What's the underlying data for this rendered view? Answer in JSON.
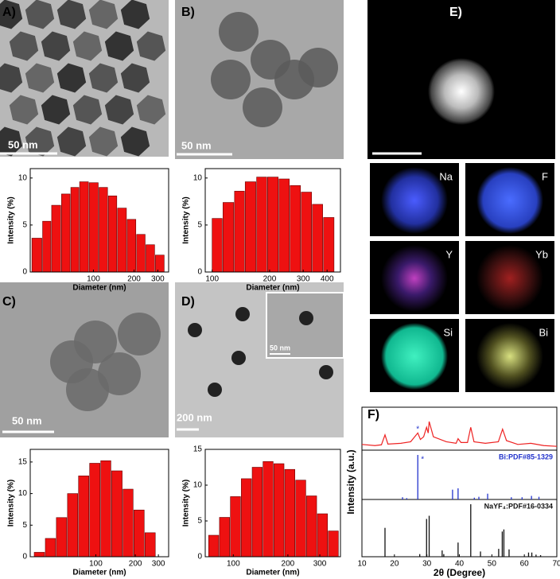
{
  "panels": {
    "A": {
      "label": "A)",
      "scale": "50 nm"
    },
    "B": {
      "label": "B)",
      "scale": "50 nm"
    },
    "C": {
      "label": "C)",
      "scale": "50 nm"
    },
    "D": {
      "label": "D)",
      "scale": "200 nm",
      "inset_scale": "50 nm"
    },
    "E": {
      "label": "E)",
      "maps": [
        "Na",
        "F",
        "Y",
        "Yb",
        "Si",
        "Bi"
      ]
    }
  },
  "chart_data": [
    {
      "type": "histogram",
      "xlabel": "Diameter (nm)",
      "ylabel": "Intensity (%)",
      "color": "#ee1111",
      "log_x": true,
      "bins": [
        35,
        42,
        49,
        58,
        68,
        79,
        93,
        110,
        129,
        151,
        178,
        209,
        245,
        288,
        339
      ],
      "values": [
        3.6,
        5.4,
        7.1,
        8.3,
        9.0,
        9.6,
        9.5,
        9.0,
        8.1,
        6.8,
        5.6,
        4.0,
        2.9,
        1.8
      ],
      "xlim": [
        34,
        361
      ],
      "xticks": [
        100,
        200,
        300
      ],
      "ylim": [
        0,
        11
      ],
      "yticks": [
        0,
        5,
        10
      ]
    },
    {
      "type": "histogram",
      "xlabel": "Diameter (nm)",
      "ylabel": "Intensity (%)",
      "color": "#ee1111",
      "log_x": true,
      "bins": [
        100,
        114,
        131,
        149,
        171,
        195,
        224,
        256,
        293,
        335,
        383,
        439
      ],
      "values": [
        5.7,
        7.4,
        8.6,
        9.6,
        10.1,
        10.1,
        9.9,
        9.2,
        8.5,
        7.2,
        5.8
      ],
      "xlim": [
        92,
        470
      ],
      "xticks": [
        100,
        200,
        300,
        400
      ],
      "ylim": [
        0,
        11
      ],
      "yticks": [
        0,
        5,
        10
      ]
    },
    {
      "type": "histogram",
      "xlabel": "Diameter (nm)",
      "ylabel": "Intensity (%)",
      "color": "#ee1111",
      "log_x": true,
      "bins": [
        33.9,
        41.2,
        50.0,
        60.8,
        73.8,
        89.7,
        109,
        132,
        161,
        195,
        237,
        288
      ],
      "values": [
        0.7,
        2.9,
        6.2,
        10.0,
        12.8,
        14.8,
        15.2,
        13.6,
        10.7,
        7.4,
        3.8
      ],
      "xlim": [
        31.6,
        359
      ],
      "xticks": [
        100,
        200,
        300
      ],
      "ylim": [
        0,
        17
      ],
      "yticks": [
        0,
        5,
        10,
        15
      ]
    },
    {
      "type": "histogram",
      "xlabel": "Diameter (nm)",
      "ylabel": "Intensity (%)",
      "color": "#ee1111",
      "log_x": true,
      "bins": [
        73.1,
        83.9,
        96.4,
        110.7,
        127.1,
        145.9,
        167.5,
        192.3,
        220.8,
        253.5,
        291.1,
        334.2,
        383.7
      ],
      "values": [
        3.0,
        5.5,
        8.4,
        10.9,
        12.5,
        13.3,
        13.0,
        12.2,
        10.7,
        8.5,
        6.0,
        3.6
      ],
      "xlim": [
        70,
        390
      ],
      "xticks": [
        100,
        200,
        300
      ],
      "ylim": [
        0,
        15
      ],
      "yticks": [
        0,
        5,
        10,
        15
      ]
    },
    {
      "type": "xrd",
      "label": "F)",
      "xlabel": "2θ (Degree)",
      "ylabel": "Intensity (a.u.)",
      "peak_marker": "*",
      "xlim": [
        10,
        70
      ],
      "xticks": [
        10,
        20,
        30,
        40,
        50,
        60,
        70
      ],
      "ylim": [
        0,
        100
      ],
      "pattern": {
        "color": "#ee2222",
        "x": [
          10,
          14,
          16,
          17.1,
          18,
          22,
          25,
          27.2,
          28,
          29,
          29.9,
          30.4,
          30.7,
          32,
          36,
          39,
          39.6,
          40.5,
          42.5,
          43.5,
          44.5,
          48,
          52,
          53.3,
          54.5,
          58,
          62,
          66,
          70
        ],
        "y": [
          15,
          12,
          14,
          40,
          16,
          18,
          22,
          45,
          28,
          35,
          60,
          45,
          75,
          35,
          22,
          18,
          30,
          20,
          20,
          60,
          22,
          18,
          22,
          55,
          25,
          15,
          18,
          12,
          10
        ]
      },
      "references": [
        {
          "name": "Bi:PDF#85-1329",
          "color": "#2233cc",
          "x": [
            22.5,
            23.8,
            27.2,
            37.9,
            39.6,
            44.6,
            46.0,
            48.7,
            56.0,
            59.3,
            62.2,
            64.5
          ],
          "values": [
            5,
            3,
            100,
            22,
            25,
            4,
            6,
            13,
            5,
            5,
            8,
            6
          ]
        },
        {
          "name": "NaYF₄:PDF#16-0334",
          "color": "#111111",
          "x": [
            17.1,
            27.8,
            29.9,
            30.7,
            34.7,
            35.2,
            39.6,
            43.5,
            46.5,
            52.1,
            53.2,
            53.7,
            55.3,
            61.3,
            62.3,
            63.6,
            65.0
          ],
          "values": [
            55,
            5,
            72,
            78,
            12,
            5,
            27,
            100,
            10,
            15,
            48,
            52,
            14,
            8,
            8,
            4,
            3
          ]
        }
      ]
    }
  ]
}
